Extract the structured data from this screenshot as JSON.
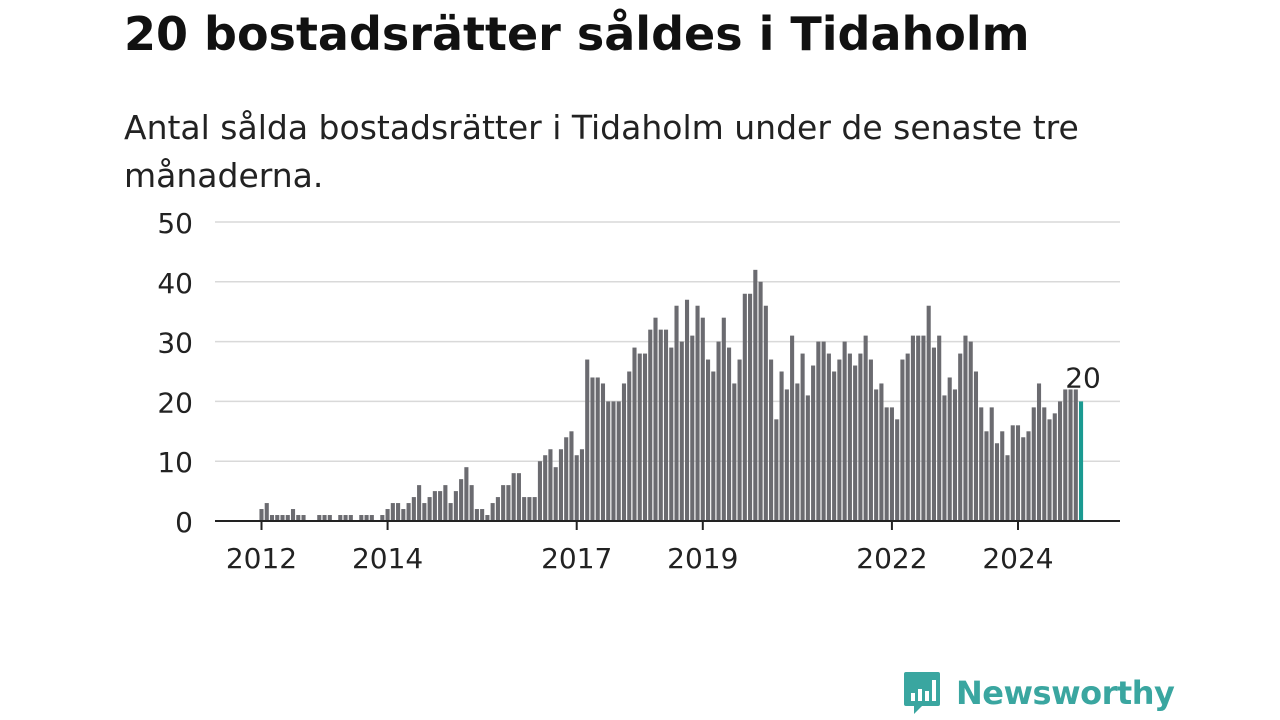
{
  "header": {
    "title": "20 bostadsrätter såldes i Tidaholm",
    "subtitle": "Antal sålda bostadsrätter i Tidaholm under de senaste tre månaderna."
  },
  "brand": {
    "name": "Newsworthy",
    "color": "#3aa6a0",
    "logo_icon": "bar-chart-speech-bubble-icon"
  },
  "chart_data": {
    "type": "bar",
    "x_start": "2012-01",
    "frequency": "monthly",
    "values": [
      2,
      3,
      1,
      1,
      1,
      1,
      2,
      1,
      1,
      0,
      0,
      1,
      1,
      1,
      0,
      1,
      1,
      1,
      0,
      1,
      1,
      1,
      0,
      1,
      2,
      3,
      3,
      2,
      3,
      4,
      6,
      3,
      4,
      5,
      5,
      6,
      3,
      5,
      7,
      9,
      6,
      2,
      2,
      1,
      3,
      4,
      6,
      6,
      8,
      8,
      4,
      4,
      4,
      10,
      11,
      12,
      9,
      12,
      14,
      15,
      11,
      12,
      27,
      24,
      24,
      23,
      20,
      20,
      20,
      23,
      25,
      29,
      28,
      28,
      32,
      34,
      32,
      32,
      29,
      36,
      30,
      37,
      31,
      36,
      34,
      27,
      25,
      30,
      34,
      29,
      23,
      27,
      38,
      38,
      42,
      40,
      36,
      27,
      17,
      25,
      22,
      31,
      23,
      28,
      21,
      26,
      30,
      30,
      28,
      25,
      27,
      30,
      28,
      26,
      28,
      31,
      27,
      22,
      23,
      19,
      19,
      17,
      27,
      28,
      31,
      31,
      31,
      36,
      29,
      31,
      21,
      24,
      22,
      28,
      31,
      30,
      25,
      19,
      15,
      19,
      13,
      15,
      11,
      16,
      16,
      14,
      15,
      19,
      23,
      19,
      17,
      18,
      20,
      22,
      22,
      22,
      20
    ],
    "highlight_last": true,
    "highlight_label": "20",
    "highlight_color": "#1a9a91",
    "bar_color": "#6b6b70",
    "xlabel": "",
    "ylabel": "",
    "ylim": [
      0,
      50
    ],
    "yticks": [
      0,
      10,
      20,
      30,
      40,
      50
    ],
    "xtick_labels": [
      "2012",
      "2014",
      "2017",
      "2019",
      "2022",
      "2024"
    ],
    "grid": true
  }
}
